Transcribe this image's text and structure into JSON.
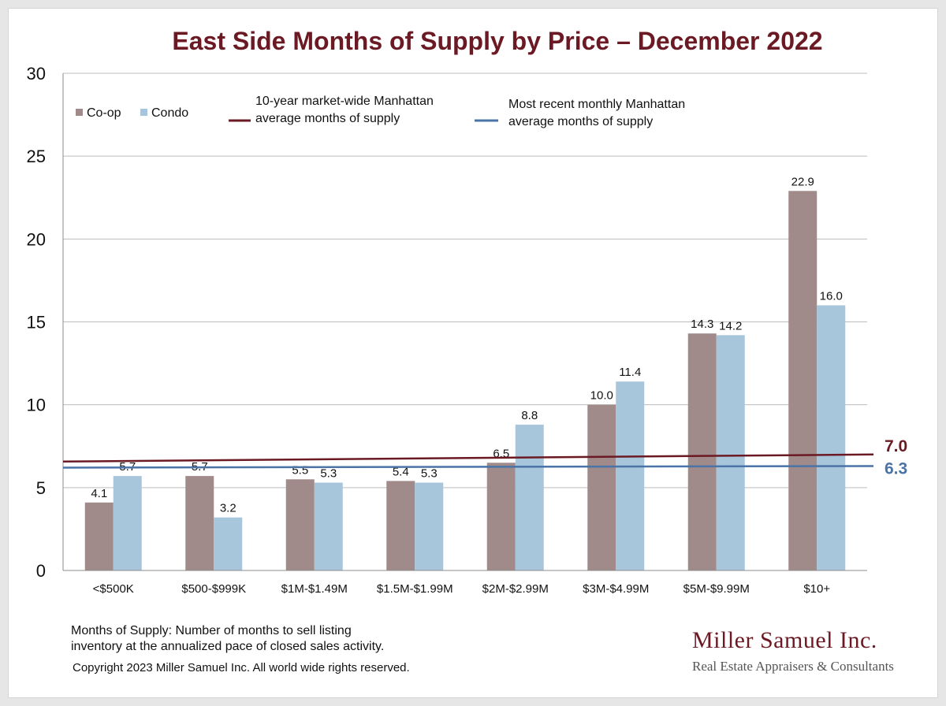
{
  "chart_data": {
    "type": "bar",
    "title": "East Side Months of Supply by Price – December 2022",
    "categories": [
      "<$500K",
      "$500-$999K",
      "$1M-$1.49M",
      "$1.5M-$1.99M",
      "$2M-$2.99M",
      "$3M-$4.99M",
      "$5M-$9.99M",
      "$10+"
    ],
    "series": [
      {
        "name": "Co-op",
        "color": "#a08a8a",
        "values": [
          4.1,
          5.7,
          5.5,
          5.4,
          6.5,
          10.0,
          14.3,
          22.9
        ],
        "labels": [
          "4.1",
          "5.7",
          "5.5",
          "5.4",
          "6.5",
          "10.0",
          "14.3",
          "22.9"
        ]
      },
      {
        "name": "Condo",
        "color": "#a8c6db",
        "values": [
          5.7,
          3.2,
          5.3,
          5.3,
          8.8,
          11.4,
          14.2,
          16.0
        ],
        "labels": [
          "5.7",
          "3.2",
          "5.3",
          "5.3",
          "8.8",
          "11.4",
          "14.2",
          "16.0"
        ]
      }
    ],
    "reference_lines": [
      {
        "legend": [
          "10-year  market-wide Manhattan",
          "average months of supply"
        ],
        "value": 7.0,
        "label": "7.0",
        "color": "#6b1a24"
      },
      {
        "legend": [
          "Most recent monthly Manhattan",
          "average months of supply"
        ],
        "value": 6.3,
        "label": "6.3",
        "color": "#4a74a8"
      }
    ],
    "ylim": [
      0,
      30
    ],
    "yticks": [
      0,
      5,
      10,
      15,
      20,
      25,
      30
    ],
    "grid": true,
    "legend_position": "top-left"
  },
  "footnote": {
    "line1": "Months of Supply: Number of months to sell listing",
    "line2": "inventory at the annualized pace of closed sales activity."
  },
  "copyright": "Copyright 2023 Miller Samuel Inc.  All world wide rights reserved.",
  "brand": {
    "name": "Miller Samuel Inc.",
    "tagline": "Real Estate Appraisers & Consultants"
  }
}
